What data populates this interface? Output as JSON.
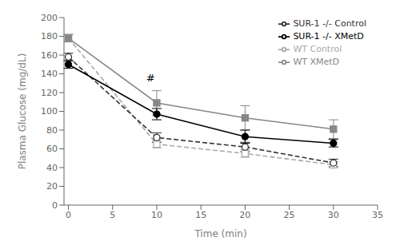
{
  "chart_data": {
    "type": "line",
    "x": [
      0,
      10,
      20,
      30
    ],
    "series": [
      {
        "name": "WT Control",
        "color": "#aaaaaa",
        "line_style": "dashed",
        "marker": "open_square",
        "values": [
          178,
          65,
          55,
          43
        ],
        "errors": [
          4,
          4,
          4,
          3
        ]
      },
      {
        "name": "WT XMetD",
        "color": "#888888",
        "line_style": "solid",
        "marker": "square",
        "values": [
          178,
          109,
          93,
          81
        ],
        "errors": [
          4,
          13,
          13,
          10
        ]
      },
      {
        "name": "SUR-1 -/- Control",
        "color": "#333333",
        "line_style": "dashed",
        "marker": "open_circle",
        "values": [
          158,
          72,
          62,
          45
        ],
        "errors": [
          4,
          5,
          5,
          4
        ]
      },
      {
        "name": "SUR-1 -/- XMetD",
        "color": "#000000",
        "line_style": "solid",
        "marker": "circle",
        "values": [
          150,
          97,
          73,
          66
        ],
        "errors": [
          4,
          6,
          7,
          4
        ]
      }
    ],
    "xlabel": "Time (min)",
    "ylabel": "Plasma Glucose (mg/dL)",
    "xlim": [
      -0.5,
      35
    ],
    "ylim": [
      0,
      200
    ],
    "xticks": [
      0,
      5,
      10,
      15,
      20,
      25,
      30,
      35
    ],
    "yticks": [
      0,
      20,
      40,
      60,
      80,
      100,
      120,
      140,
      160,
      180,
      200
    ],
    "annotations": [
      {
        "x": 9.3,
        "y": 128,
        "text": "#"
      }
    ],
    "legend": "upper right",
    "grid": false
  }
}
